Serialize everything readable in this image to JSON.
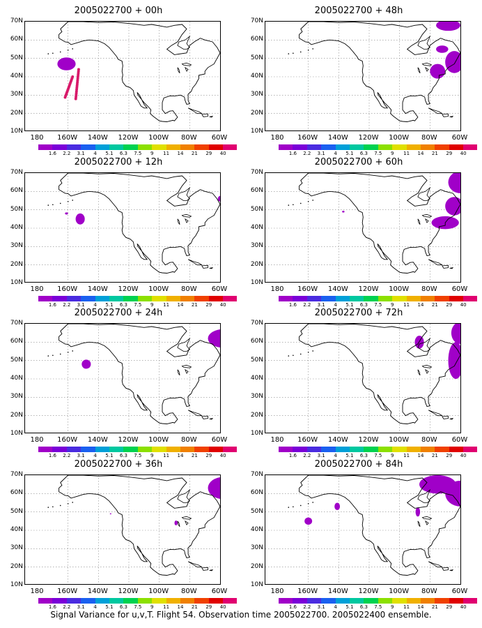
{
  "caption": "Signal Variance for u,v,T. Flight 54. Observation time 2005022700. 2005022400 ensemble.",
  "y_ticks": [
    "70N",
    "60N",
    "50N",
    "40N",
    "30N",
    "20N",
    "10N"
  ],
  "x_ticks": [
    "180",
    "160W",
    "140W",
    "120W",
    "100W",
    "80W",
    "60W"
  ],
  "colorbar": {
    "labels": [
      "1.6",
      "2.2",
      "3.1",
      "4",
      "5.1",
      "6.3",
      "7.5",
      "9",
      "11",
      "14",
      "21",
      "29",
      "40"
    ],
    "colors": [
      "#a000c8",
      "#7a00d8",
      "#4a2ce0",
      "#1a60f0",
      "#00a0d8",
      "#00c8a0",
      "#00d250",
      "#8ce000",
      "#e0e000",
      "#f0b000",
      "#f08000",
      "#f04000",
      "#e00000",
      "#e00070"
    ]
  },
  "panels": [
    {
      "title": "2005022700 + 00h"
    },
    {
      "title": "2005022700 + 48h"
    },
    {
      "title": "2005022700 + 12h"
    },
    {
      "title": "2005022700 + 60h"
    },
    {
      "title": "2005022700 + 24h"
    },
    {
      "title": "2005022700 + 72h"
    },
    {
      "title": "2005022700 + 36h"
    },
    {
      "title": "2005022700 + 84h"
    }
  ]
}
